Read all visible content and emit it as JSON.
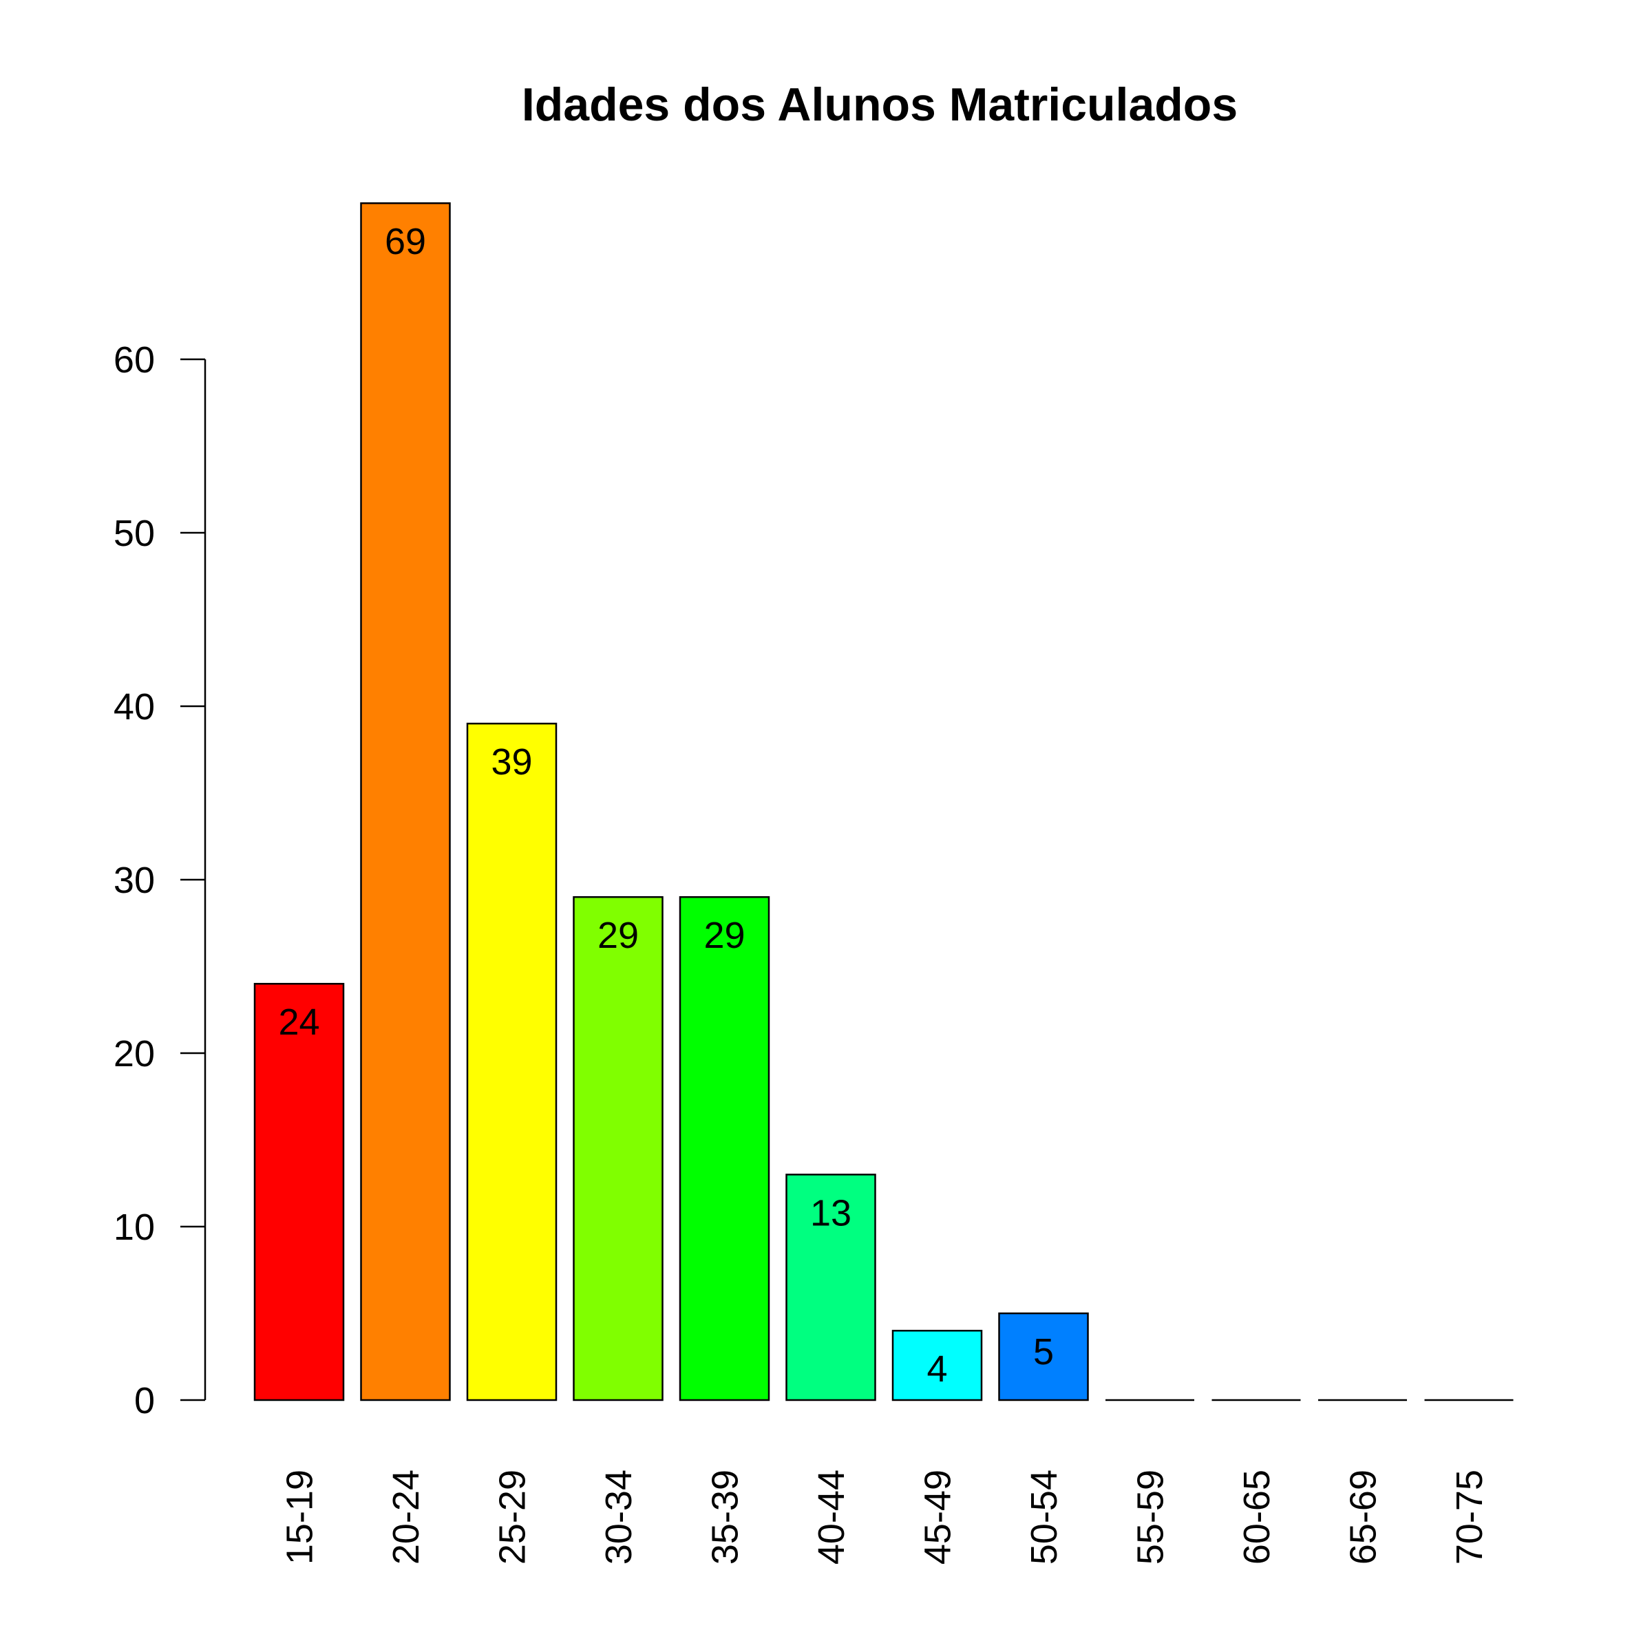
{
  "chart_data": {
    "type": "bar",
    "title": "Idades dos Alunos Matriculados",
    "xlabel": "",
    "ylabel": "",
    "categories": [
      "15-19",
      "20-24",
      "25-29",
      "30-34",
      "35-39",
      "40-44",
      "45-49",
      "50-54",
      "55-59",
      "60-65",
      "65-69",
      "70-75"
    ],
    "values": [
      24,
      69,
      39,
      29,
      29,
      13,
      4,
      5,
      0,
      0,
      0,
      0
    ],
    "data_labels": [
      "24",
      "69",
      "39",
      "29",
      "29",
      "13",
      "4",
      "5",
      "",
      "",
      "",
      ""
    ],
    "colors": [
      "#FF0000",
      "#FF8000",
      "#FFFF00",
      "#80FF00",
      "#00FF00",
      "#00FF80",
      "#00FFFF",
      "#0080FF",
      "#0000FF",
      "#8000FF",
      "#FF00FF",
      "#FF0080"
    ],
    "yticks": [
      0,
      10,
      20,
      30,
      40,
      50,
      60
    ],
    "ytick_labels": [
      "0",
      "10",
      "20",
      "30",
      "40",
      "50",
      "60"
    ],
    "ylim": [
      0,
      69
    ],
    "grid": false,
    "legend": "none"
  }
}
